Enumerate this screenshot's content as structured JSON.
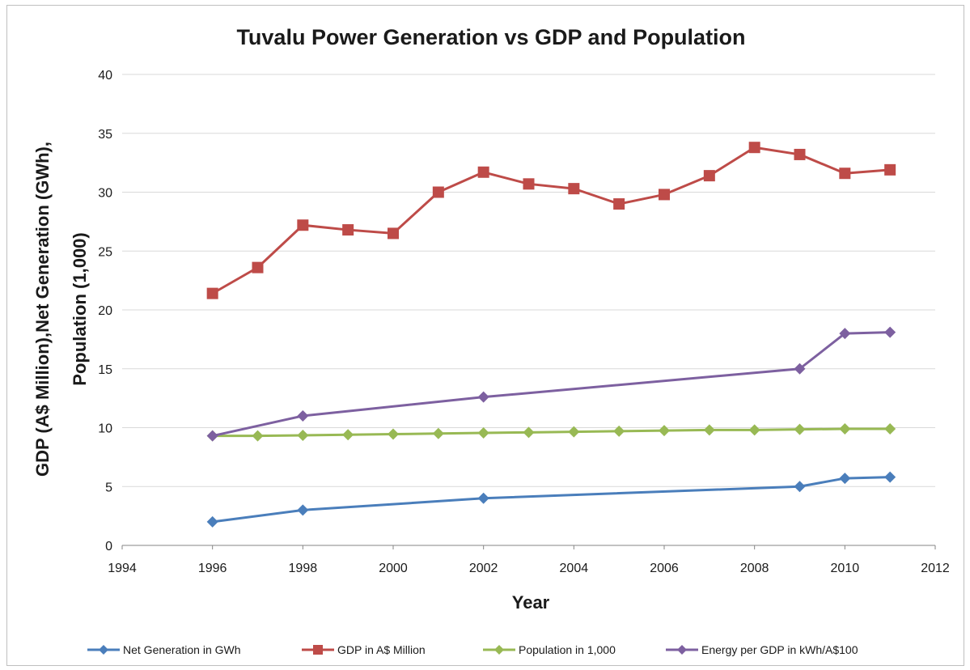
{
  "chart_data": {
    "type": "line",
    "title": "Tuvalu Power Generation vs GDP and Population",
    "xlabel": "Year",
    "ylabel": [
      "GDP (A$ Million),Net Generation (GWh),",
      "Population  (1,000)"
    ],
    "xlim": [
      1994,
      2012
    ],
    "ylim": [
      0,
      40
    ],
    "x_ticks": [
      1994,
      1996,
      1998,
      2000,
      2002,
      2004,
      2006,
      2008,
      2010,
      2012
    ],
    "y_ticks": [
      0,
      5,
      10,
      15,
      20,
      25,
      30,
      35,
      40
    ],
    "grid": "horizontal",
    "legend_position": "bottom",
    "series": [
      {
        "name": "Net Generation in GWh",
        "color": "#4a7ebb",
        "marker": "diamond",
        "x": [
          1996,
          1998,
          2002,
          2009,
          2010,
          2011
        ],
        "y": [
          2.0,
          3.0,
          4.0,
          5.0,
          5.7,
          5.8
        ]
      },
      {
        "name": "GDP in A$ Million",
        "color": "#be4b48",
        "marker": "square",
        "x": [
          1996,
          1997,
          1998,
          1999,
          2000,
          2001,
          2002,
          2003,
          2004,
          2005,
          2006,
          2007,
          2008,
          2009,
          2010,
          2011
        ],
        "y": [
          21.4,
          23.6,
          27.2,
          26.8,
          26.5,
          30.0,
          31.7,
          30.7,
          30.3,
          29.0,
          29.8,
          31.4,
          33.8,
          33.2,
          31.6,
          31.9
        ]
      },
      {
        "name": "Population in 1,000",
        "color": "#98b954",
        "marker": "diamond",
        "x": [
          1996,
          1997,
          1998,
          1999,
          2000,
          2001,
          2002,
          2003,
          2004,
          2005,
          2006,
          2007,
          2008,
          2009,
          2010,
          2011
        ],
        "y": [
          9.3,
          9.3,
          9.35,
          9.4,
          9.45,
          9.5,
          9.55,
          9.6,
          9.65,
          9.7,
          9.75,
          9.8,
          9.8,
          9.85,
          9.9,
          9.9
        ]
      },
      {
        "name": "Energy per GDP in kWh/A$100",
        "color": "#7d60a0",
        "marker": "diamond",
        "x": [
          1996,
          1998,
          2002,
          2009,
          2010,
          2011
        ],
        "y": [
          9.3,
          11.0,
          12.6,
          15.0,
          18.0,
          18.1
        ]
      }
    ]
  }
}
